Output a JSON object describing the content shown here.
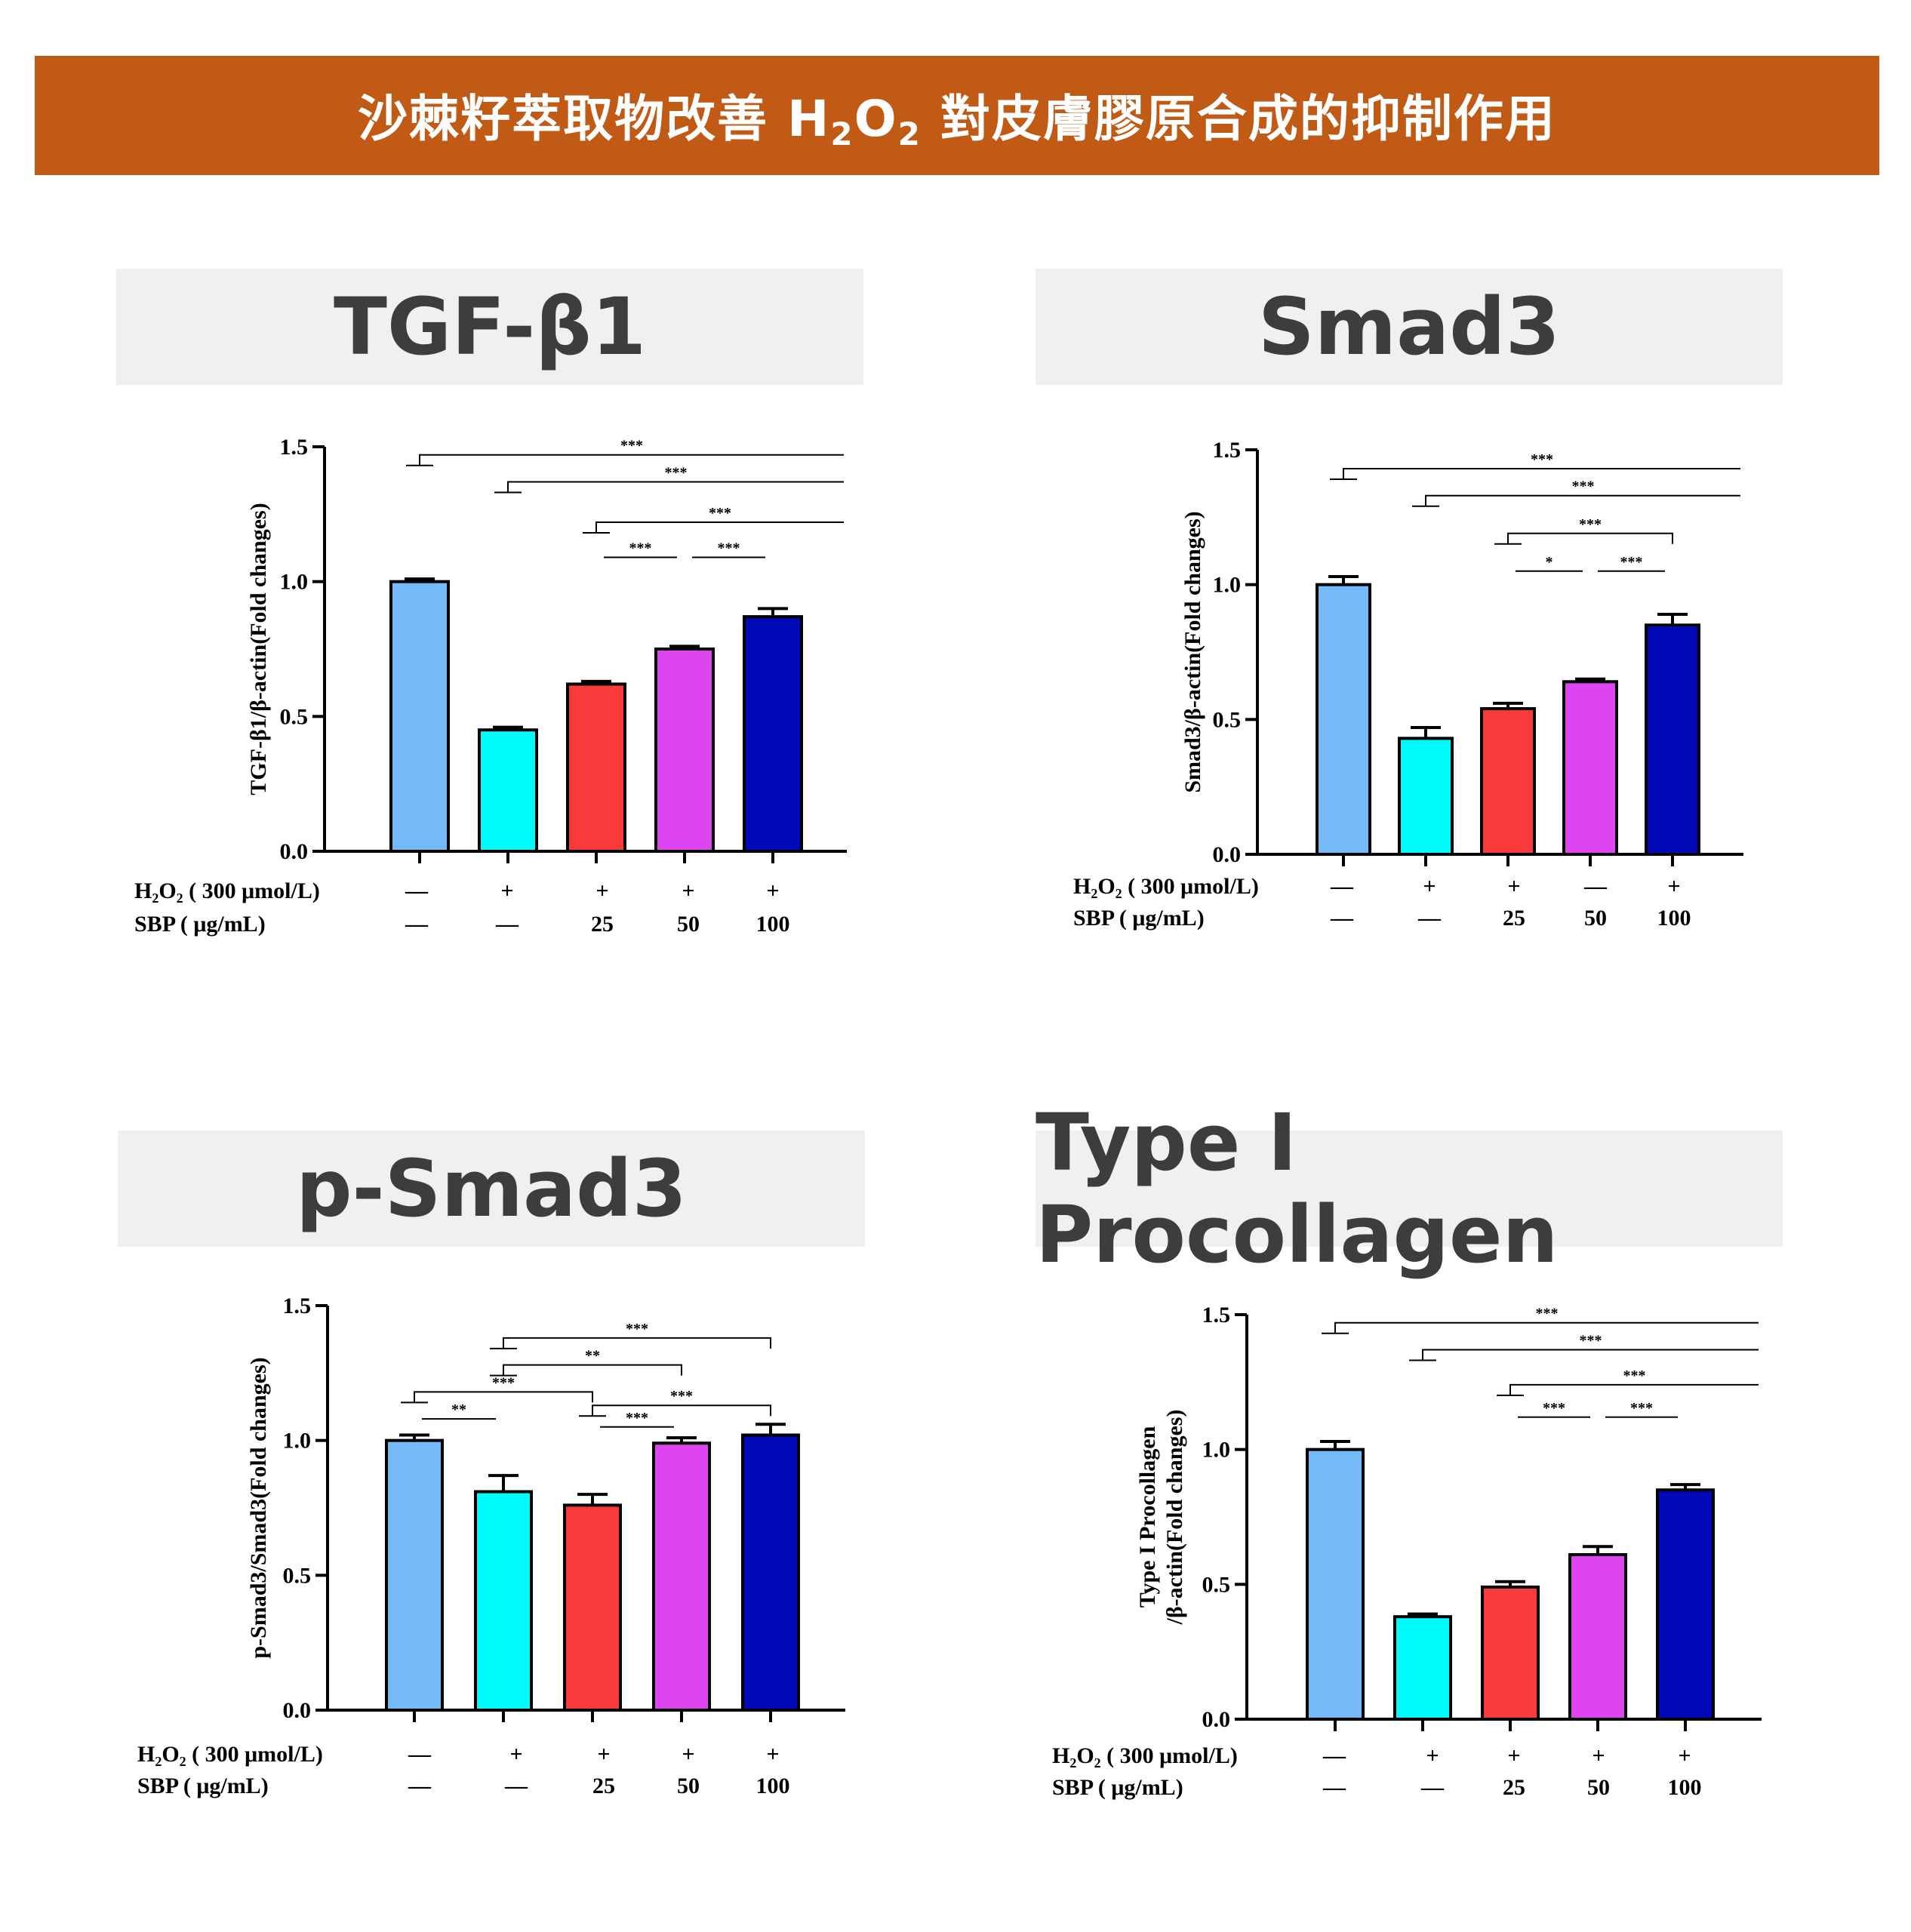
{
  "header": {
    "title_pre": "沙棘籽萃取物改善 H",
    "title_sub1": "2",
    "title_mid": "O",
    "title_sub2": "2",
    "title_post": " 對皮膚膠原合成的抑制作用"
  },
  "colors": {
    "banner": "#c05a14",
    "bars": [
      "#74baf9",
      "#00fbfb",
      "#f83a3a",
      "#dc45ef",
      "#0008b8"
    ]
  },
  "chart_data": [
    {
      "type": "bar",
      "title": "TGF-β1",
      "ylabel": "TGF-β1/β-actin(Fold changes)",
      "ylim": [
        0,
        1.5
      ],
      "yticks": [
        "0.0",
        "0.5",
        "1.0",
        "1.5"
      ],
      "categories": [
        "1",
        "2",
        "3",
        "4",
        "5"
      ],
      "values": [
        1.0,
        0.45,
        0.62,
        0.75,
        0.87
      ],
      "errors": [
        0.01,
        0.01,
        0.01,
        0.01,
        0.03
      ],
      "row1_label": "H₂O₂ ( 300 μmol/L)",
      "row1": [
        "—",
        "+",
        "+",
        "+",
        "+"
      ],
      "row2_label": "SBP ( μg/mL)",
      "row2": [
        "—",
        "—",
        "25",
        "50",
        "100"
      ],
      "brackets": [
        {
          "from": 0,
          "to": 5,
          "y": 1.47,
          "label": "***"
        },
        {
          "from": 1,
          "to": 5,
          "y": 1.37,
          "label": "***"
        },
        {
          "from": 2,
          "to": 5,
          "y": 1.22,
          "label": "***"
        },
        {
          "from": 2,
          "to": 3,
          "y": 1.09,
          "label": "***",
          "plain": true
        },
        {
          "from": 3,
          "to": 4,
          "y": 1.09,
          "label": "***",
          "plain": true
        }
      ]
    },
    {
      "type": "bar",
      "title": "Smad3",
      "ylabel": "Smad3/β-actin(Fold changes)",
      "ylim": [
        0,
        1.5
      ],
      "yticks": [
        "0.0",
        "0.5",
        "1.0",
        "1.5"
      ],
      "categories": [
        "1",
        "2",
        "3",
        "4",
        "5"
      ],
      "values": [
        1.0,
        0.43,
        0.54,
        0.64,
        0.85
      ],
      "errors": [
        0.03,
        0.04,
        0.02,
        0.01,
        0.04
      ],
      "row1_label": "H₂O₂ ( 300 μmol/L)",
      "row1": [
        "—",
        "+",
        "+",
        "—",
        "+"
      ],
      "row2_label": "SBP ( μg/mL)",
      "row2": [
        "—",
        "—",
        "25",
        "50",
        "100"
      ],
      "brackets": [
        {
          "from": 0,
          "to": 5,
          "y": 1.43,
          "label": "***"
        },
        {
          "from": 1,
          "to": 5,
          "y": 1.33,
          "label": "***"
        },
        {
          "from": 2,
          "to": 4,
          "y": 1.19,
          "label": "***"
        },
        {
          "from": 2,
          "to": 3,
          "y": 1.05,
          "label": "*",
          "plain": true
        },
        {
          "from": 3,
          "to": 4,
          "y": 1.05,
          "label": "***",
          "plain": true
        }
      ]
    },
    {
      "type": "bar",
      "title": "p-Smad3",
      "ylabel": "p-Smad3/Smad3(Fold changes)",
      "ylim": [
        0,
        1.5
      ],
      "yticks": [
        "0.0",
        "0.5",
        "1.0",
        "1.5"
      ],
      "categories": [
        "1",
        "2",
        "3",
        "4",
        "5"
      ],
      "values": [
        1.0,
        0.81,
        0.76,
        0.99,
        1.02
      ],
      "errors": [
        0.02,
        0.06,
        0.04,
        0.02,
        0.04
      ],
      "row1_label": "H₂O₂ ( 300 μmol/L)",
      "row1": [
        "—",
        "+",
        "+",
        "+",
        "+"
      ],
      "row2_label": "SBP ( μg/mL)",
      "row2": [
        "—",
        "—",
        "25",
        "50",
        "100"
      ],
      "brackets": [
        {
          "from": 1,
          "to": 4,
          "y": 1.38,
          "label": "***"
        },
        {
          "from": 1,
          "to": 3,
          "y": 1.28,
          "label": "**"
        },
        {
          "from": 0,
          "to": 2,
          "y": 1.18,
          "label": "***"
        },
        {
          "from": 2,
          "to": 4,
          "y": 1.13,
          "label": "***"
        },
        {
          "from": 0,
          "to": 1,
          "y": 1.08,
          "label": "**",
          "plain": true
        },
        {
          "from": 2,
          "to": 3,
          "y": 1.05,
          "label": "***",
          "plain": true
        }
      ]
    },
    {
      "type": "bar",
      "title": "Type I Procollagen",
      "ylabel": "Type I Procollagen",
      "ylabel2": "/β-actin(Fold changes)",
      "ylim": [
        0,
        1.5
      ],
      "yticks": [
        "0.0",
        "0.5",
        "1.0",
        "1.5"
      ],
      "categories": [
        "1",
        "2",
        "3",
        "4",
        "5"
      ],
      "values": [
        1.0,
        0.38,
        0.49,
        0.61,
        0.85
      ],
      "errors": [
        0.03,
        0.01,
        0.02,
        0.03,
        0.02
      ],
      "row1_label": "H₂O₂ ( 300 μmol/L)",
      "row1": [
        "—",
        "+",
        "+",
        "+",
        "+"
      ],
      "row2_label": "SBP ( μg/mL)",
      "row2": [
        "—",
        "—",
        "25",
        "50",
        "100"
      ],
      "brackets": [
        {
          "from": 0,
          "to": 5,
          "y": 1.47,
          "label": "***"
        },
        {
          "from": 1,
          "to": 5,
          "y": 1.37,
          "label": "***"
        },
        {
          "from": 2,
          "to": 5,
          "y": 1.24,
          "label": "***"
        },
        {
          "from": 2,
          "to": 3,
          "y": 1.12,
          "label": "***",
          "plain": true
        },
        {
          "from": 3,
          "to": 4,
          "y": 1.12,
          "label": "***",
          "plain": true
        }
      ]
    }
  ]
}
